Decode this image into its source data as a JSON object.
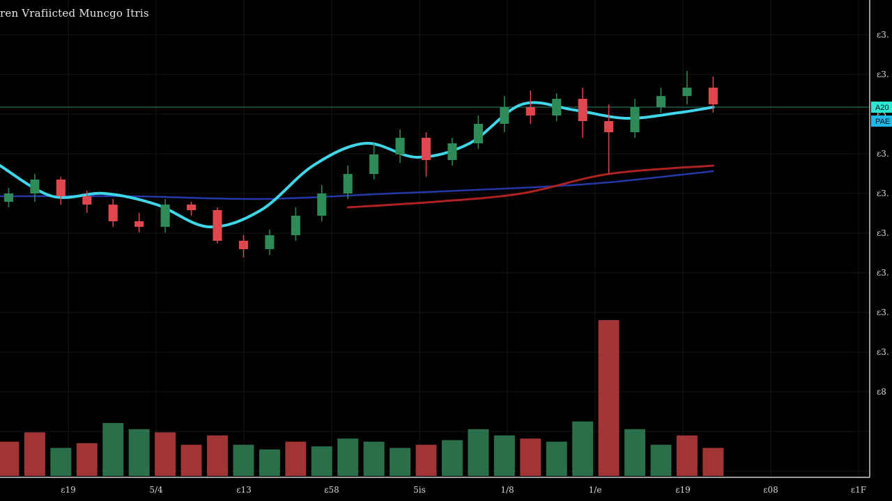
{
  "title": "ren Vrafiicted Muncgo Itris",
  "colors": {
    "background": "#000000",
    "grid": "#161616",
    "up": "#2e8b57",
    "down": "#e0464d",
    "volume_up": "#2f7a52",
    "volume_down": "#b33a3a",
    "ma_fast": "#3fd6e8",
    "ma_mid": "#b02222",
    "ma_slow": "#2438a8",
    "price_line": "#1f6f5a",
    "badge_primary": "#2ee6d2",
    "badge_secondary": "#1fb8e8"
  },
  "chart_data": {
    "type": "line",
    "title": "ren Vrafiicted Muncgo Itris",
    "xlabel": "",
    "ylabel": "",
    "x_ticks": [
      "ε19",
      "5/4",
      "ε13",
      "ε58",
      "5is",
      "1/8",
      "1/e",
      "ε19",
      "ε08",
      "ε1F"
    ],
    "y_ticks": [
      "ε3.",
      "ε3.",
      "ε3.",
      "ε3.",
      "ε3.",
      "ε3.",
      "ε3.",
      "ε3.",
      "ε3.",
      "ε8"
    ],
    "xlim": [
      0,
      100
    ],
    "ylim": [
      0,
      100
    ],
    "price_badges": [
      "A20",
      "PAE"
    ],
    "grid": true,
    "candles": {
      "x": [
        1,
        4,
        7,
        10,
        13,
        16,
        19,
        22,
        25,
        28,
        31,
        34,
        37,
        40,
        43,
        46,
        49,
        52,
        55,
        58,
        61,
        64,
        67,
        70,
        73,
        76,
        79,
        82
      ],
      "open": [
        45,
        48,
        53,
        47,
        44,
        38,
        36,
        44,
        42,
        31,
        28,
        33,
        40,
        48,
        55,
        62,
        68,
        60,
        66,
        73,
        79,
        76,
        82,
        74,
        70,
        79,
        83,
        86
      ],
      "close": [
        48,
        53,
        47,
        44,
        38,
        36,
        44,
        42,
        31,
        28,
        33,
        40,
        48,
        55,
        62,
        68,
        60,
        66,
        73,
        79,
        76,
        82,
        74,
        70,
        79,
        83,
        86,
        80
      ],
      "high": [
        50,
        55,
        54,
        49,
        46,
        41,
        46,
        45,
        43,
        33,
        35,
        43,
        51,
        58,
        66,
        71,
        70,
        68,
        76,
        83,
        85,
        84,
        86,
        80,
        82,
        86,
        92,
        90
      ],
      "low": [
        43,
        45,
        44,
        41,
        36,
        34,
        34,
        40,
        30,
        25,
        26,
        31,
        38,
        46,
        53,
        59,
        54,
        58,
        64,
        70,
        73,
        74,
        68,
        55,
        68,
        77,
        80,
        77
      ]
    },
    "series": [
      {
        "x": [
          0,
          6,
          12,
          18,
          24,
          30,
          36,
          42,
          48,
          54,
          60,
          66,
          72,
          78,
          82
        ],
        "values": [
          58,
          47,
          48,
          44,
          36,
          42,
          58,
          66,
          61,
          66,
          80,
          78,
          75,
          77,
          79
        ]
      },
      {
        "x": [
          40,
          50,
          60,
          70,
          82
        ],
        "values": [
          43,
          45,
          48,
          55,
          58
        ]
      },
      {
        "x": [
          0,
          15,
          30,
          45,
          60,
          70,
          82
        ],
        "values": [
          47,
          47,
          46,
          48,
          50,
          52,
          56
        ]
      }
    ],
    "volume": {
      "x": [
        1,
        4,
        7,
        10,
        13,
        16,
        19,
        22,
        25,
        28,
        31,
        34,
        37,
        40,
        43,
        46,
        49,
        52,
        55,
        58,
        61,
        64,
        67,
        70,
        73,
        76,
        79,
        82
      ],
      "values": [
        22,
        28,
        18,
        21,
        34,
        30,
        28,
        20,
        26,
        20,
        17,
        22,
        19,
        24,
        22,
        18,
        20,
        23,
        30,
        26,
        24,
        22,
        35,
        100,
        30,
        20,
        26,
        18
      ],
      "direction": [
        "down",
        "down",
        "up",
        "down",
        "up",
        "up",
        "down",
        "down",
        "down",
        "up",
        "up",
        "down",
        "up",
        "up",
        "up",
        "up",
        "down",
        "up",
        "up",
        "up",
        "down",
        "up",
        "up",
        "down",
        "up",
        "up",
        "down",
        "down"
      ]
    },
    "price_line": 79
  }
}
